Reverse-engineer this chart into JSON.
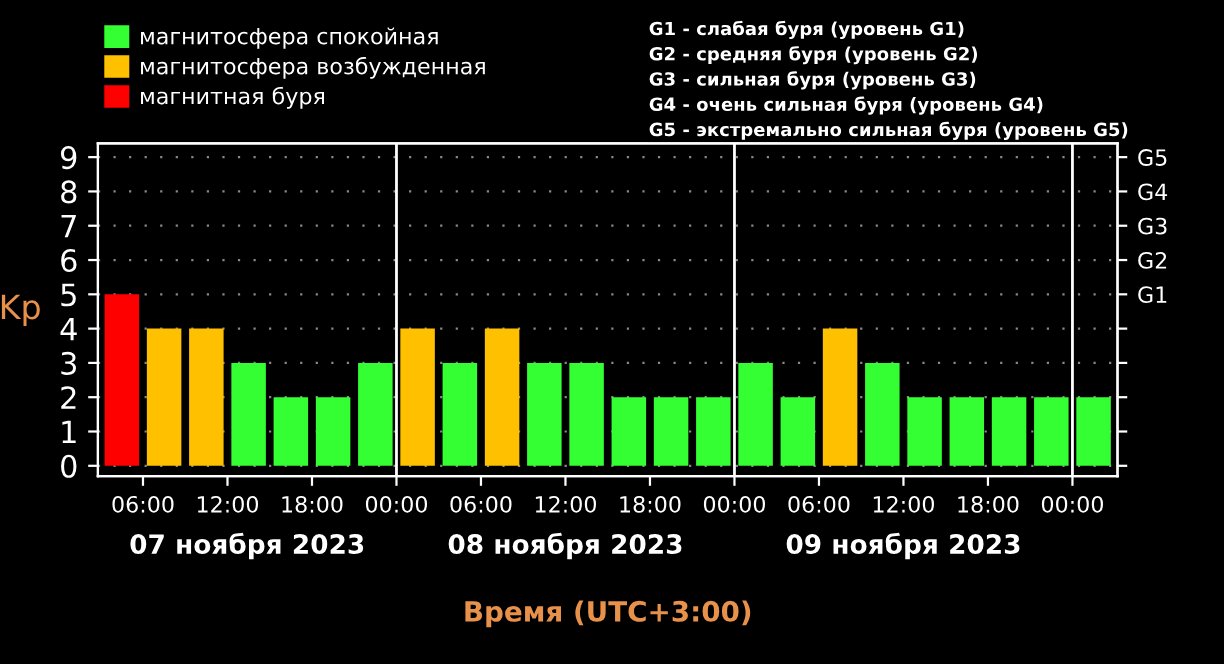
{
  "chart_data": {
    "type": "bar",
    "ylabel": "Kp",
    "xlabel": "Время (UTC+3:00)",
    "x": [
      "2023-11-07T04:30",
      "2023-11-07T07:30",
      "2023-11-07T10:30",
      "2023-11-07T13:30",
      "2023-11-07T16:30",
      "2023-11-07T19:30",
      "2023-11-07T22:30",
      "2023-11-08T01:30",
      "2023-11-08T04:30",
      "2023-11-08T07:30",
      "2023-11-08T10:30",
      "2023-11-08T13:30",
      "2023-11-08T16:30",
      "2023-11-08T19:30",
      "2023-11-08T22:30",
      "2023-11-09T01:30",
      "2023-11-09T04:30",
      "2023-11-09T07:30",
      "2023-11-09T10:30",
      "2023-11-09T13:30",
      "2023-11-09T16:30",
      "2023-11-09T19:30",
      "2023-11-09T22:30",
      "2023-11-10T01:30"
    ],
    "series": [
      {
        "name": "магнитосфера спокойная",
        "color": "#33ff33",
        "values": [
          null,
          null,
          null,
          3,
          2,
          2,
          3,
          null,
          3,
          null,
          3,
          3,
          2,
          2,
          2,
          3,
          2,
          null,
          3,
          2,
          2,
          2,
          2,
          2
        ]
      },
      {
        "name": "магнитосфера возбужденная",
        "color": "#ffc000",
        "values": [
          null,
          4,
          4,
          null,
          null,
          null,
          null,
          4,
          null,
          4,
          null,
          null,
          null,
          null,
          null,
          null,
          null,
          4,
          null,
          null,
          null,
          null,
          null,
          null
        ]
      },
      {
        "name": "магнитная буря",
        "color": "#ff0000",
        "values": [
          5,
          null,
          null,
          null,
          null,
          null,
          null,
          null,
          null,
          null,
          null,
          null,
          null,
          null,
          null,
          null,
          null,
          null,
          null,
          null,
          null,
          null,
          null,
          null
        ]
      }
    ],
    "xlim": [
      "2023-11-07T02:48",
      "2023-11-10T03:12"
    ],
    "xticks": [
      {
        "value": "2023-11-07T06:00",
        "label": "06:00"
      },
      {
        "value": "2023-11-07T12:00",
        "label": "12:00"
      },
      {
        "value": "2023-11-07T18:00",
        "label": "18:00"
      },
      {
        "value": "2023-11-08T00:00",
        "label": "00:00"
      },
      {
        "value": "2023-11-08T06:00",
        "label": "06:00"
      },
      {
        "value": "2023-11-08T12:00",
        "label": "12:00"
      },
      {
        "value": "2023-11-08T18:00",
        "label": "18:00"
      },
      {
        "value": "2023-11-09T00:00",
        "label": "00:00"
      },
      {
        "value": "2023-11-09T06:00",
        "label": "06:00"
      },
      {
        "value": "2023-11-09T12:00",
        "label": "12:00"
      },
      {
        "value": "2023-11-09T18:00",
        "label": "18:00"
      },
      {
        "value": "2023-11-10T00:00",
        "label": "00:00"
      }
    ],
    "ylim": [
      -0.3,
      9.4
    ],
    "yticks": [
      0,
      1,
      2,
      3,
      4,
      5,
      6,
      7,
      8,
      9
    ],
    "y2_categories": [
      "G5",
      "G4",
      "G3",
      "G2",
      "G1",
      null,
      null,
      null,
      null,
      null
    ],
    "ref_lines": [
      {
        "axis": "x",
        "value": "2023-11-08T00:00",
        "color": "#ffffff"
      },
      {
        "axis": "x",
        "value": "2023-11-09T00:00",
        "color": "#ffffff"
      },
      {
        "axis": "x",
        "value": "2023-11-10T00:00",
        "color": "#ffffff"
      }
    ],
    "grid": "y",
    "legend": "top left",
    "annotations": [
      "07 ноября 2023",
      "08 ноября 2023",
      "09 ноября 2023",
      "G1 - слабая буря (уровень G1)",
      "G2 - средняя буря (уровень G2)",
      "G3 - сильная буря (уровень G3)",
      "G4 - очень сильная буря (уровень G4)",
      "G5 - экстремально сильная буря (уровень G5)"
    ]
  }
}
